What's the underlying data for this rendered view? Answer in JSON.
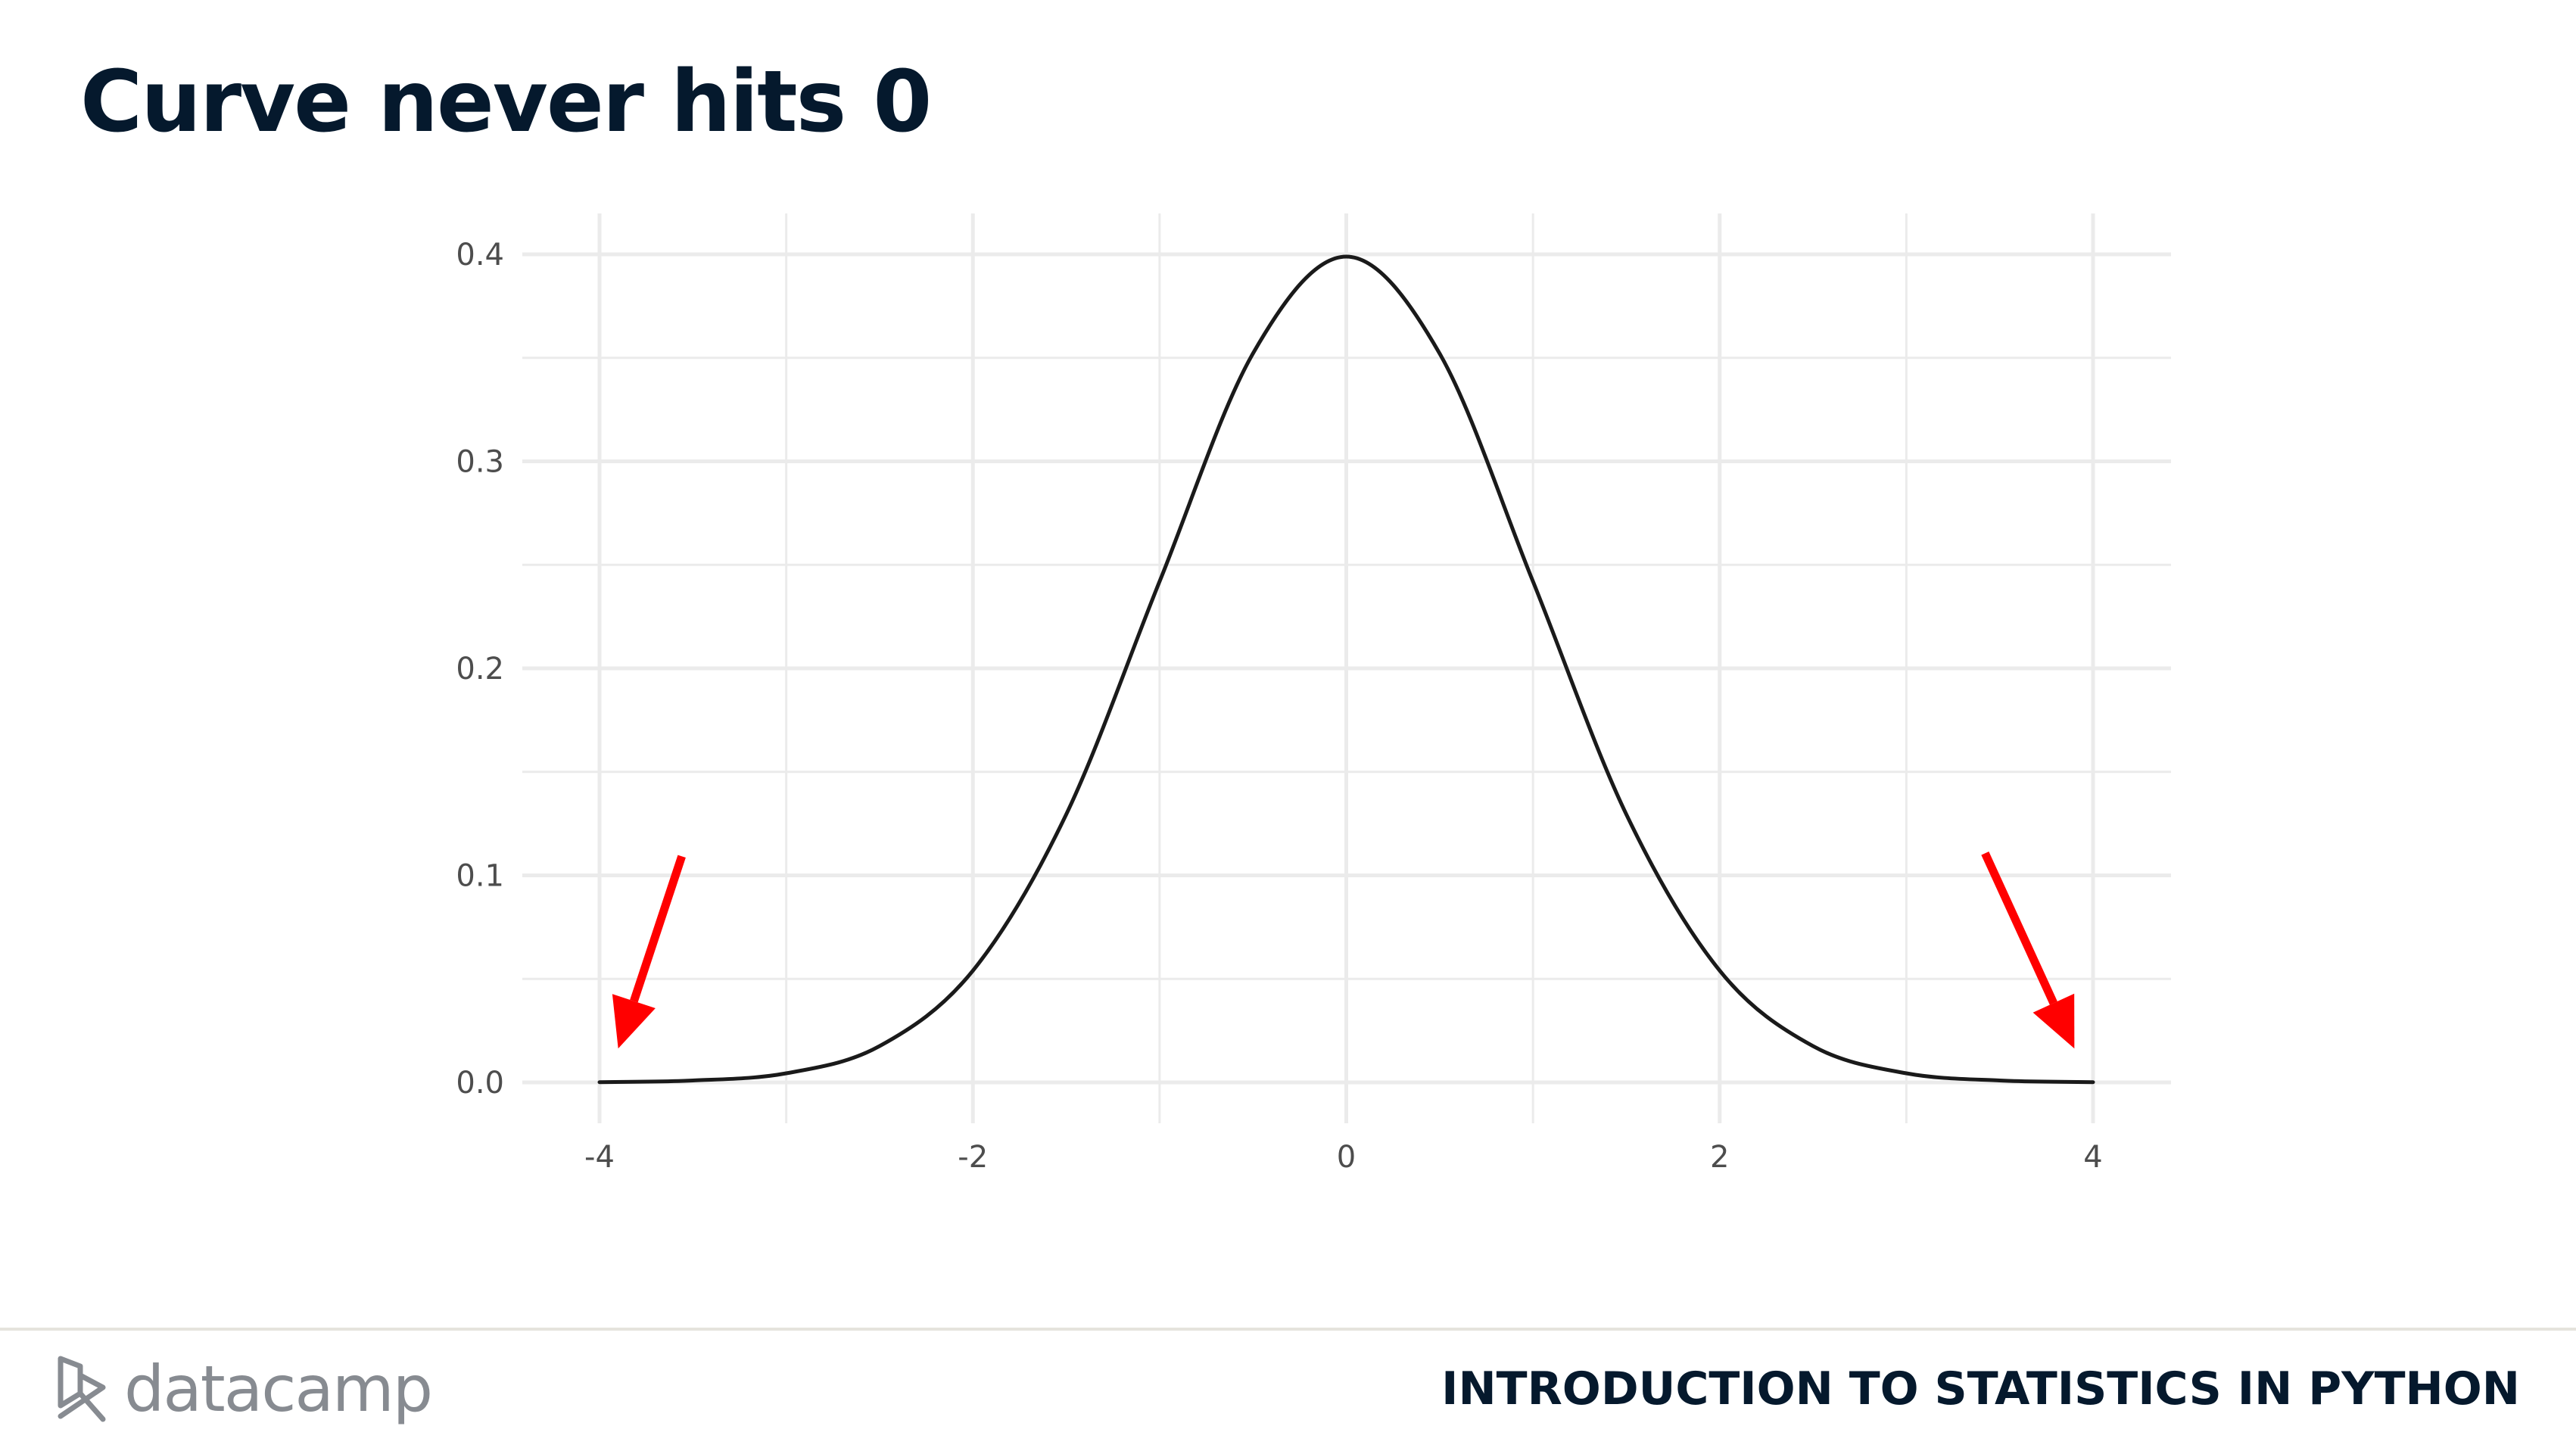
{
  "slide": {
    "title": "Curve never hits 0",
    "course_name": "INTRODUCTION TO STATISTICS IN PYTHON",
    "logo_text": "datacamp",
    "logo_icon": "datacamp-logo-icon"
  },
  "colors": {
    "title": "#05192d",
    "curve": "#1a1a1a",
    "grid": "#ebebeb",
    "arrow": "#ff0000",
    "tick_text": "#4d4d4d",
    "logo": "#878b91"
  },
  "chart_data": {
    "type": "line",
    "title": "",
    "xlabel": "",
    "ylabel": "",
    "xlim": [
      -4,
      4
    ],
    "ylim": [
      0,
      0.4
    ],
    "grid": true,
    "legend": "none",
    "x_ticks": [
      "-4",
      "-2",
      "0",
      "2",
      "4"
    ],
    "y_ticks": [
      "0.0",
      "0.1",
      "0.2",
      "0.3",
      "0.4"
    ],
    "series": [
      {
        "x": [
          -4,
          -3.5,
          -3,
          -2.5,
          -2,
          -1.5,
          -1,
          -0.5,
          0,
          0.5,
          1,
          1.5,
          2,
          2.5,
          3,
          3.5,
          4
        ],
        "y": [
          0.0001,
          0.0009,
          0.0044,
          0.0175,
          0.054,
          0.1295,
          0.242,
          0.3521,
          0.3989,
          0.3521,
          0.242,
          0.1295,
          0.054,
          0.0175,
          0.0044,
          0.0009,
          0.0001
        ]
      }
    ],
    "annotations": [
      {
        "type": "arrow",
        "points_to": [
          -3.9,
          0.02
        ],
        "color": "#ff0000"
      },
      {
        "type": "arrow",
        "points_to": [
          3.9,
          0.02
        ],
        "color": "#ff0000"
      }
    ]
  }
}
